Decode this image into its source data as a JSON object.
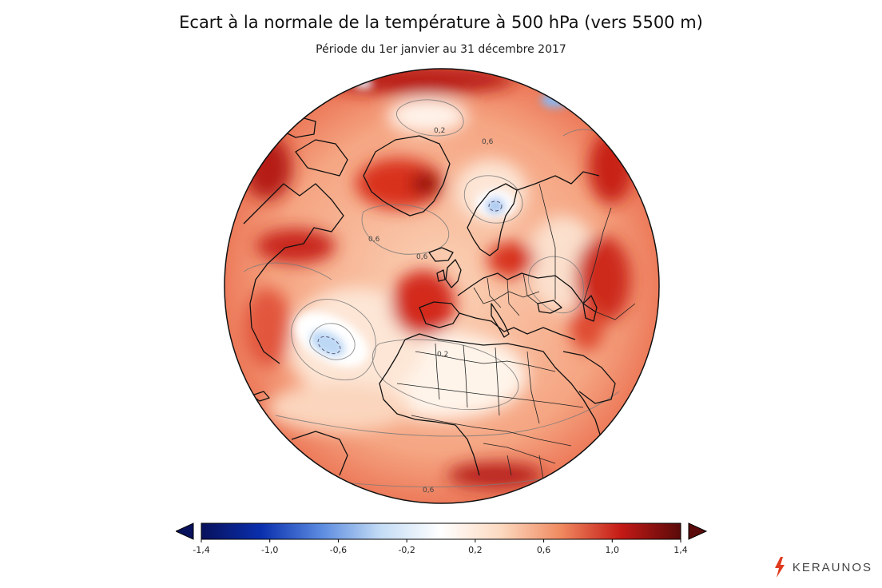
{
  "header": {
    "title": "Ecart à la normale de la température à 500 hPa (vers 5500 m)",
    "subtitle": "Période du 1er janvier au 31 décembre 2017"
  },
  "map": {
    "contour_labels": [
      "0,2",
      "0,6",
      "0,6",
      "0,6",
      "0,2",
      "0,6"
    ]
  },
  "colorbar": {
    "min": -1.4,
    "max": 1.4,
    "tick_labels": [
      "-1,4",
      "-1,0",
      "-0,6",
      "-0,2",
      "0,2",
      "0,6",
      "1,0",
      "1,4"
    ],
    "colors": [
      "#08115c",
      "#0a2fae",
      "#5b8be0",
      "#c4dcf5",
      "#ffffff",
      "#fcd9c0",
      "#f08a60",
      "#c41a16",
      "#5a0a0a"
    ],
    "extend": "both"
  },
  "brand": {
    "name": "KERAUNOS",
    "accent": "#e03a1e"
  }
}
